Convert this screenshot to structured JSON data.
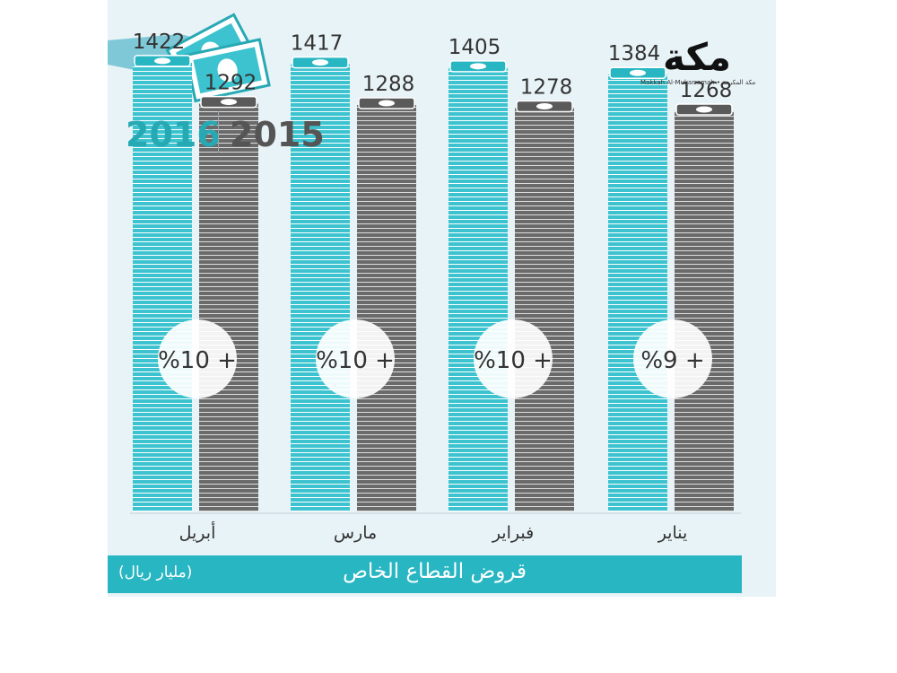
{
  "header": {
    "year_2016": "2016",
    "year_2015": "2015"
  },
  "logo": {
    "name": "مكة",
    "subtitle": "Makkah Al-Mukarramah • مكة المكرمة"
  },
  "footer": {
    "title": "قروض القطاع الخاص",
    "unit": "(مليار ريال)"
  },
  "colors": {
    "series_2016": "#27b6c2",
    "series_2015": "#5a5a5a",
    "background": "#e8f3f7",
    "footer_bar": "#27b6c2"
  },
  "chart_data": {
    "type": "bar",
    "categories": [
      "أبريل",
      "مارس",
      "فبراير",
      "يناير"
    ],
    "series": [
      {
        "name": "2016",
        "values": [
          1422,
          1417,
          1405,
          1384
        ]
      },
      {
        "name": "2015",
        "values": [
          1292,
          1288,
          1278,
          1268
        ]
      }
    ],
    "change_labels": [
      "%10 +",
      "%10 +",
      "%10 +",
      "%9 +"
    ],
    "ylim": [
      0,
      1450
    ]
  }
}
